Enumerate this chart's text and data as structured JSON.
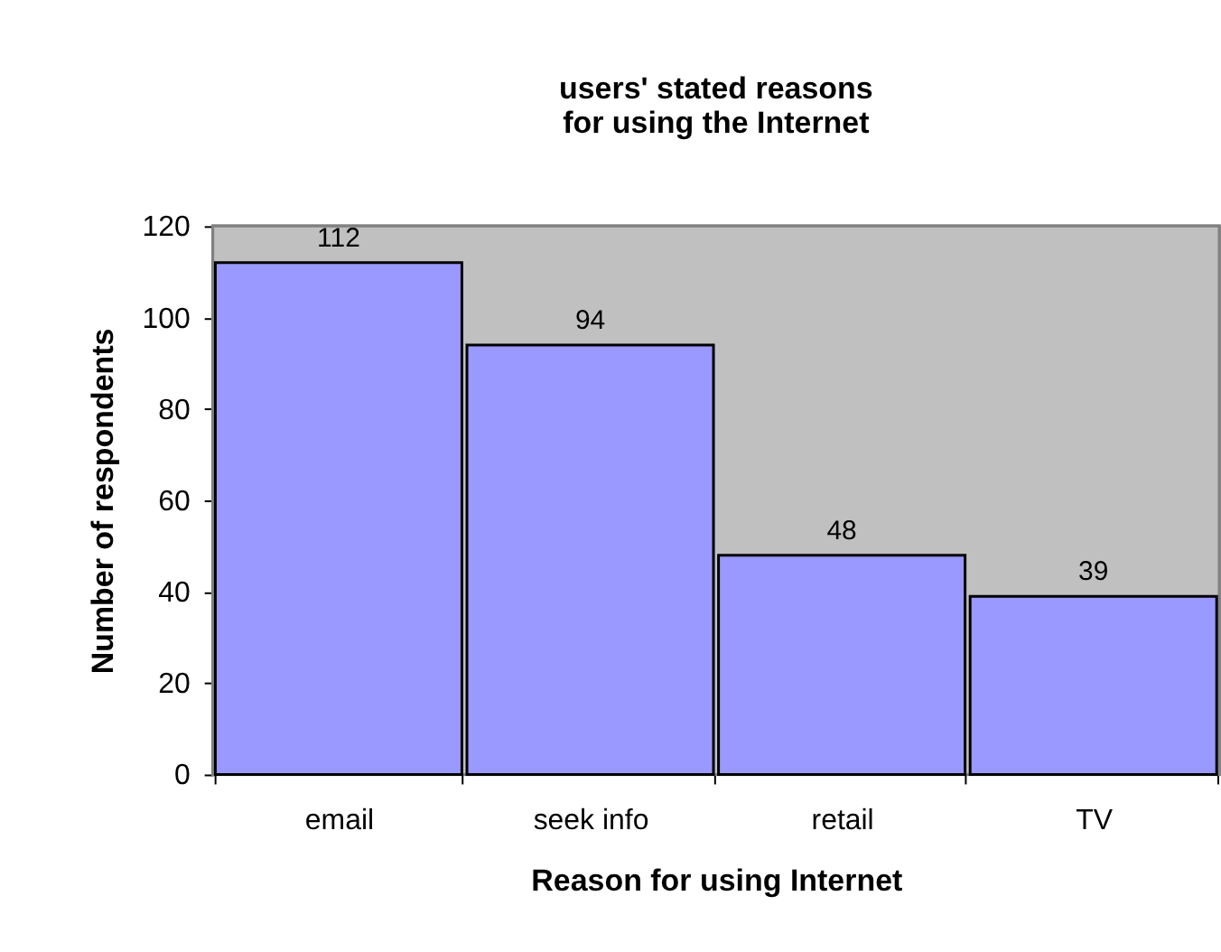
{
  "chart_data": {
    "type": "bar",
    "title": "users' stated reasons for using the Internet",
    "xlabel": "Reason for using Internet",
    "ylabel": "Number of respondents",
    "categories": [
      "email",
      "seek info",
      "retail",
      "TV"
    ],
    "values": [
      112,
      94,
      48,
      39
    ],
    "color": "#9999ff",
    "ylim": [
      0,
      120
    ],
    "yticks": [
      0,
      20,
      40,
      60,
      80,
      100,
      120
    ],
    "data_labels": true
  }
}
